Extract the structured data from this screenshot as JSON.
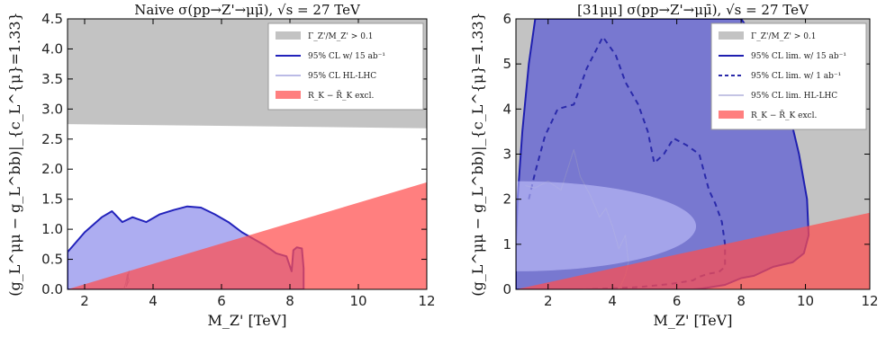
{
  "chart_data": [
    {
      "type": "area",
      "title": "Naive σ(pp→Z'→μμ̄), √s = 27 TeV",
      "xlabel": "M_Z' [TeV]",
      "ylabel": "(g_L^μμ − g_L^bb)|_{c_L^{μ}=1.33}",
      "xlim": [
        1.5,
        12
      ],
      "ylim": [
        0,
        4.5
      ],
      "xticks": [
        "2",
        "4",
        "6",
        "8",
        "10",
        "12"
      ],
      "yticks": [
        "0.0",
        "0.5",
        "1.0",
        "1.5",
        "2.0",
        "2.5",
        "3.0",
        "3.5",
        "4.0",
        "4.5"
      ],
      "grid": false,
      "legend_position": "top-right",
      "series": [
        {
          "name": "Γ_Z'/M_Z' > 0.1",
          "color": "#bdbdbd",
          "x": [
            1.5,
            12,
            12,
            1.5
          ],
          "y": [
            2.75,
            2.68,
            4.5,
            4.5
          ]
        },
        {
          "name": "95% CL w/ 15 ab⁻¹",
          "color": "#3333cc",
          "x": [
            1.5,
            2.0,
            2.5,
            2.8,
            3.1,
            3.4,
            3.8,
            4.2,
            4.6,
            5.0,
            5.4,
            5.8,
            6.2,
            6.6,
            7.0,
            7.3,
            7.6,
            7.9,
            8.05,
            8.1,
            8.2,
            8.35,
            8.4,
            8.4,
            1.5
          ],
          "y": [
            0.62,
            0.95,
            1.2,
            1.3,
            1.12,
            1.2,
            1.12,
            1.25,
            1.32,
            1.38,
            1.36,
            1.25,
            1.12,
            0.95,
            0.82,
            0.72,
            0.6,
            0.55,
            0.3,
            0.65,
            0.7,
            0.68,
            0.35,
            0.0,
            0.0
          ]
        },
        {
          "name": "95% CL HL-LHC",
          "color": "#7777cc",
          "x": [
            3.15,
            3.2,
            3.25,
            3.3,
            3.22,
            3.3,
            3.24
          ],
          "y": [
            0.0,
            0.1,
            0.25,
            0.15,
            0.05,
            0.3,
            0.15
          ]
        },
        {
          "name": "R_K − R̄_K excl.",
          "color": "#ff6b6b",
          "x": [
            1.5,
            12,
            12,
            1.5
          ],
          "y": [
            0.0,
            1.78,
            0.0,
            0.0
          ]
        }
      ]
    },
    {
      "type": "area",
      "title": "[31μμ] σ(pp→Z'→μμ̄), √s = 27 TeV",
      "xlabel": "M_Z' [TeV]",
      "ylabel": "(g_L^μμ − g_L^bb)|_{c_L^{μ}=1.33}",
      "xlim": [
        1,
        12
      ],
      "ylim": [
        0,
        6
      ],
      "xticks": [
        "2",
        "4",
        "6",
        "8",
        "10",
        "12"
      ],
      "yticks": [
        "0",
        "1",
        "2",
        "3",
        "4",
        "5",
        "6"
      ],
      "grid": false,
      "legend_position": "top-right",
      "series": [
        {
          "name": "Γ_Z'/M_Z' > 0.1",
          "color": "#bdbdbd",
          "x": [
            1,
            12,
            12,
            1
          ],
          "y": [
            0,
            0,
            6,
            6
          ]
        },
        {
          "name": "95% CL lim. w/ 15 ab⁻¹",
          "color": "#3333cc",
          "x": [
            1.0,
            1.05,
            1.2,
            1.4,
            1.6,
            2.0,
            3.0,
            4.0,
            5.0,
            6.0,
            7.0,
            8.0,
            8.8,
            9.4,
            9.8,
            10.05,
            10.1,
            9.95,
            9.6,
            9.0,
            8.4,
            8.0,
            7.5,
            6.8,
            6.5,
            6.2,
            5.0,
            3.0,
            1.0
          ],
          "y": [
            1.0,
            2.0,
            3.5,
            5.0,
            6.0,
            6.0,
            6.0,
            6.0,
            6.0,
            6.0,
            6.0,
            6.0,
            5.2,
            4.2,
            3.0,
            2.0,
            1.2,
            0.8,
            0.6,
            0.5,
            0.3,
            0.25,
            0.1,
            0.02,
            0.0,
            0.0,
            0.0,
            0.0,
            0.0
          ]
        },
        {
          "name": "95% CL lim. w/ 1 ab⁻¹",
          "color": "#2a2aaa",
          "x": [
            1.4,
            1.6,
            1.9,
            2.3,
            2.8,
            3.2,
            3.7,
            4.1,
            4.4,
            4.8,
            5.1,
            5.3,
            5.6,
            5.9,
            6.3,
            6.7,
            7.0,
            7.2,
            7.4,
            7.5,
            7.5,
            7.3,
            7.0,
            6.7,
            6.5,
            5.8,
            4.8,
            3.9,
            3.1
          ],
          "y": [
            2.0,
            2.6,
            3.4,
            4.0,
            4.1,
            4.9,
            5.6,
            5.2,
            4.6,
            4.1,
            3.5,
            2.8,
            3.0,
            3.35,
            3.2,
            3.0,
            2.2,
            1.9,
            1.5,
            1.0,
            0.5,
            0.38,
            0.35,
            0.28,
            0.2,
            0.12,
            0.05,
            0.02,
            0.0
          ]
        },
        {
          "name": "95% CL lim. HL-LHC",
          "color": "#8888cc",
          "x": [
            1.3,
            1.6,
            2.0,
            2.4,
            2.8,
            3.0,
            3.3,
            3.6,
            3.8,
            4.0,
            4.2,
            4.4,
            4.5,
            4.4,
            4.2
          ],
          "y": [
            2.3,
            2.25,
            2.4,
            2.2,
            3.1,
            2.5,
            2.1,
            1.6,
            1.8,
            1.4,
            0.9,
            1.2,
            0.6,
            0.3,
            0.0
          ]
        },
        {
          "name": "R_K − R̄_K excl.",
          "color": "#ff6b6b",
          "x": [
            1,
            12,
            12,
            1
          ],
          "y": [
            0.0,
            1.7,
            0.0,
            0.0
          ]
        }
      ]
    }
  ]
}
